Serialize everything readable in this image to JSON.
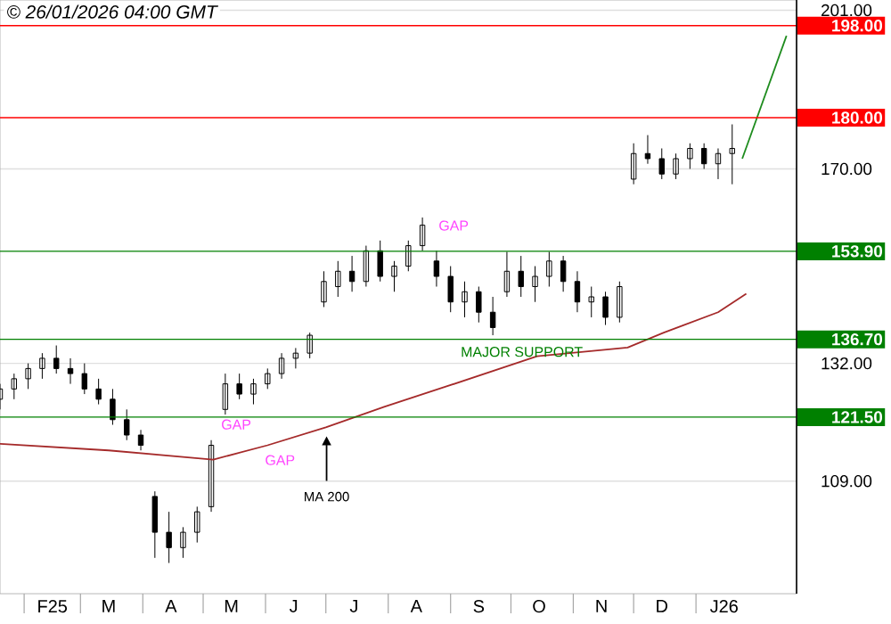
{
  "chart_data": {
    "type": "candlestick",
    "title": "© 26/01/2026 04:00 GMT",
    "x": [
      "2025-01-20",
      "2025-01-27",
      "2025-02-03",
      "2025-02-10",
      "2025-02-17",
      "2025-02-24",
      "2025-03-03",
      "2025-03-10",
      "2025-03-17",
      "2025-03-24",
      "2025-03-31",
      "2025-04-07",
      "2025-04-14",
      "2025-04-21",
      "2025-04-28",
      "2025-05-05",
      "2025-05-12",
      "2025-05-19",
      "2025-05-26",
      "2025-06-02",
      "2025-06-09",
      "2025-06-16",
      "2025-06-23",
      "2025-06-30",
      "2025-07-07",
      "2025-07-14",
      "2025-07-21",
      "2025-07-28",
      "2025-08-04",
      "2025-08-11",
      "2025-08-18",
      "2025-08-25",
      "2025-09-01",
      "2025-09-08",
      "2025-09-15",
      "2025-09-22",
      "2025-09-29",
      "2025-10-06",
      "2025-10-13",
      "2025-10-20",
      "2025-10-27",
      "2025-11-03",
      "2025-11-10",
      "2025-11-17",
      "2025-11-24",
      "2025-12-01",
      "2025-12-08",
      "2025-12-15",
      "2025-12-22",
      "2025-12-29",
      "2026-01-05",
      "2026-01-12",
      "2026-01-19"
    ],
    "ohlc": [
      [
        125,
        128,
        123,
        127
      ],
      [
        127,
        130,
        125,
        129
      ],
      [
        129,
        132,
        127,
        131
      ],
      [
        131,
        134,
        129,
        133
      ],
      [
        133,
        135.5,
        130,
        131
      ],
      [
        131,
        133,
        128,
        130
      ],
      [
        130,
        132,
        126,
        127
      ],
      [
        127,
        129,
        124,
        125
      ],
      [
        125,
        127,
        120,
        121
      ],
      [
        121,
        123,
        117,
        118
      ],
      [
        118,
        119,
        115,
        116
      ],
      [
        106,
        107,
        94,
        99
      ],
      [
        99,
        103,
        93,
        96
      ],
      [
        96,
        100,
        94,
        99
      ],
      [
        99,
        104,
        97,
        103
      ],
      [
        104,
        117,
        103,
        116
      ],
      [
        123,
        130,
        122,
        128
      ],
      [
        128,
        130,
        125,
        126
      ],
      [
        126,
        129,
        124,
        128
      ],
      [
        128,
        131,
        127,
        130
      ],
      [
        130,
        134,
        129,
        133
      ],
      [
        133,
        135,
        131,
        134
      ],
      [
        134,
        138,
        133,
        137.5
      ],
      [
        144,
        150,
        143,
        148
      ],
      [
        147,
        152,
        145,
        150
      ],
      [
        150,
        153,
        146,
        148
      ],
      [
        148,
        155,
        147,
        154
      ],
      [
        154,
        156,
        148,
        149
      ],
      [
        149,
        152,
        146,
        151
      ],
      [
        151,
        156,
        150,
        155
      ],
      [
        155,
        160.5,
        154,
        159
      ],
      [
        152,
        154,
        147,
        149
      ],
      [
        149,
        151,
        142,
        144
      ],
      [
        144,
        148,
        141,
        146
      ],
      [
        146,
        147,
        140,
        142
      ],
      [
        142,
        145,
        137.5,
        139
      ],
      [
        146,
        153.8,
        145,
        150
      ],
      [
        150,
        153,
        145,
        147
      ],
      [
        147,
        151,
        144,
        149
      ],
      [
        149,
        153.8,
        147,
        152
      ],
      [
        152,
        153,
        146,
        148
      ],
      [
        148,
        150,
        142,
        144
      ],
      [
        144,
        147,
        141,
        145
      ],
      [
        145,
        146,
        139.5,
        141
      ],
      [
        141,
        148,
        140,
        147
      ],
      [
        168,
        175,
        167,
        173
      ],
      [
        173,
        176.6,
        171,
        172
      ],
      [
        172,
        174,
        168,
        169
      ],
      [
        169,
        173,
        168,
        172
      ],
      [
        172,
        175,
        170,
        174
      ],
      [
        174,
        175,
        170,
        171
      ],
      [
        171,
        174,
        168,
        173
      ],
      [
        173,
        178.7,
        167,
        174
      ]
    ],
    "color": "#000000",
    "series": [
      {
        "type": "line",
        "color": "#a52a2a",
        "x": [
          "2025-01-20",
          "2025-03-15",
          "2025-05-06",
          "2025-06-02",
          "2025-07-01",
          "2025-07-30",
          "2025-08-30",
          "2025-10-14",
          "2025-11-28",
          "2025-12-16",
          "2026-01-12",
          "2026-01-26"
        ],
        "values": [
          116.3,
          115,
          113.2,
          116,
          119.5,
          123.5,
          127.5,
          133.4,
          135.1,
          138,
          142,
          145.6
        ]
      },
      {
        "type": "line",
        "color": "#1e8c1e",
        "x": [
          "2026-01-24",
          "2026-02-15"
        ],
        "values": [
          172,
          196
        ]
      }
    ],
    "xlim": [
      "2025-01-20",
      "2026-02-20"
    ],
    "xticks": [
      {
        "value": "2025-02-01",
        "label": null
      },
      {
        "value": "2025-02-15",
        "label": "F25"
      },
      {
        "value": "2025-03-01",
        "label": null
      },
      {
        "value": "2025-03-15",
        "label": "M"
      },
      {
        "value": "2025-04-01",
        "label": null
      },
      {
        "value": "2025-04-15",
        "label": "A"
      },
      {
        "value": "2025-05-01",
        "label": null
      },
      {
        "value": "2025-05-15",
        "label": "M"
      },
      {
        "value": "2025-06-01",
        "label": null
      },
      {
        "value": "2025-06-15",
        "label": "J"
      },
      {
        "value": "2025-07-01",
        "label": null
      },
      {
        "value": "2025-07-15",
        "label": "J"
      },
      {
        "value": "2025-08-01",
        "label": null
      },
      {
        "value": "2025-08-15",
        "label": "A"
      },
      {
        "value": "2025-09-01",
        "label": null
      },
      {
        "value": "2025-09-15",
        "label": "S"
      },
      {
        "value": "2025-10-01",
        "label": null
      },
      {
        "value": "2025-10-15",
        "label": "O"
      },
      {
        "value": "2025-11-01",
        "label": null
      },
      {
        "value": "2025-11-15",
        "label": "N"
      },
      {
        "value": "2025-12-01",
        "label": null
      },
      {
        "value": "2025-12-15",
        "label": "D"
      },
      {
        "value": "2026-01-01",
        "label": null
      },
      {
        "value": "2026-01-15",
        "label": "J26"
      }
    ],
    "ylim": [
      87,
      203
    ],
    "yticks": [
      {
        "value": 109,
        "label": "109.00"
      },
      {
        "value": 132,
        "label": "132.00"
      },
      {
        "value": 170,
        "label": "170.00"
      },
      {
        "value": 201,
        "label": "201.00"
      }
    ],
    "grid": "y",
    "ref_lines": [
      {
        "axis": "y",
        "value": 198,
        "label": "198.00",
        "color": "#ff0000"
      },
      {
        "axis": "y",
        "value": 180,
        "label": "180.00",
        "color": "#ff0000"
      },
      {
        "axis": "y",
        "value": 153.9,
        "label": "153.90",
        "color": "#008000"
      },
      {
        "axis": "y",
        "value": 136.7,
        "label": "136.70",
        "color": "#008000"
      },
      {
        "axis": "y",
        "value": 121.5,
        "label": "121.50",
        "color": "#008000"
      }
    ],
    "annotations": [
      "GAP",
      "GAP",
      "GAP",
      {
        "text": "MAJOR SUPPORT",
        "x": "2025-09-05",
        "y": 136.7
      },
      "MA 200"
    ]
  }
}
